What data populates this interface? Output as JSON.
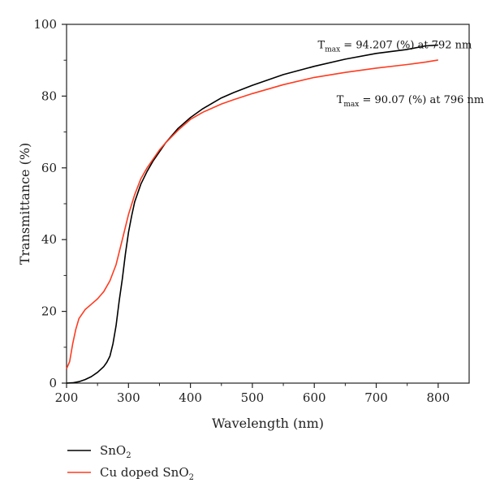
{
  "chart_data": {
    "type": "line",
    "title": "",
    "xlabel": "Wavelength (nm)",
    "ylabel": "Transmittance (%)",
    "xlim": [
      200,
      850
    ],
    "ylim": [
      0,
      100
    ],
    "xticks": [
      200,
      300,
      400,
      500,
      600,
      700,
      800
    ],
    "yticks": [
      0,
      20,
      40,
      60,
      80,
      100
    ],
    "grid": false,
    "legend_position": "bottom-left, below the plot",
    "series": [
      {
        "name_main": "SnO",
        "name_sub": "2",
        "color": "#000000",
        "x": [
          200,
          210,
          220,
          230,
          240,
          250,
          260,
          265,
          270,
          275,
          280,
          285,
          290,
          295,
          300,
          305,
          310,
          320,
          330,
          340,
          350,
          360,
          380,
          400,
          420,
          450,
          470,
          500,
          550,
          600,
          650,
          700,
          750,
          780,
          800
        ],
        "y": [
          0,
          0.1,
          0.4,
          1.0,
          1.8,
          3.0,
          4.6,
          5.8,
          7.5,
          11,
          16,
          23,
          29,
          36,
          42,
          46.5,
          50.5,
          55.5,
          59,
          62,
          64.5,
          67,
          71,
          74,
          76.5,
          79.5,
          81,
          83,
          86,
          88.3,
          90.3,
          91.9,
          93,
          94,
          94.2
        ]
      },
      {
        "name_main": "Cu doped SnO",
        "name_sub": "2",
        "color": "#ff3b1f",
        "x": [
          200,
          205,
          210,
          215,
          220,
          230,
          240,
          250,
          260,
          270,
          280,
          290,
          300,
          310,
          320,
          330,
          340,
          350,
          360,
          380,
          400,
          420,
          450,
          470,
          500,
          550,
          600,
          650,
          700,
          750,
          780,
          800
        ],
        "y": [
          4,
          6,
          11,
          15,
          18,
          20.5,
          22,
          23.5,
          25.5,
          28.5,
          33,
          40,
          47,
          52.5,
          57,
          60,
          62.5,
          65,
          67,
          70.5,
          73.5,
          75.5,
          77.8,
          79,
          80.7,
          83.2,
          85.2,
          86.6,
          87.8,
          88.8,
          89.5,
          90.07
        ]
      }
    ],
    "annotations": [
      {
        "prefix": "T",
        "sub": "max",
        "text": " = 94.207 (%) at 792 nm",
        "x": 730,
        "y": 94.207
      },
      {
        "prefix": "T",
        "sub": "max",
        "text": " = 90.07 (%) at 796 nm",
        "x": 755,
        "y": 79.0
      }
    ]
  }
}
